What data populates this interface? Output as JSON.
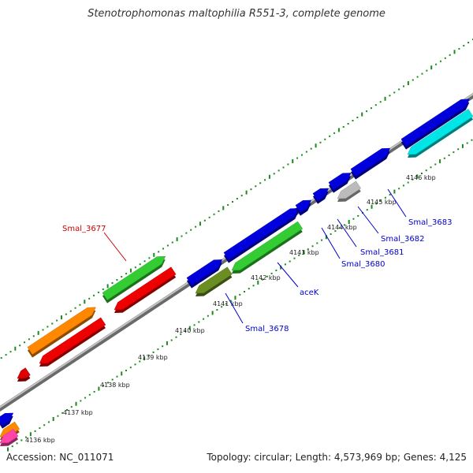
{
  "title": "Stenotrophomonas maltophilia R551-3, complete genome",
  "footer": {
    "accession": "Accession: NC_011071",
    "summary": "Topology: circular; Length: 4,573,969 bp; Genes: 4,125"
  },
  "colors": {
    "backbone": "#8c8c8c",
    "dots": "#1a8a1a",
    "label_blue": "#0000cc",
    "label_red": "#cc0000"
  },
  "scale": {
    "unit": "kbp",
    "ticks": [
      "4136 kbp",
      "4137 kbp",
      "4138 kbp",
      "4139 kbp",
      "4140 kbp",
      "4141 kbp",
      "4142 kbp",
      "4143 kbp",
      "4144 kbp",
      "4145 kbp",
      "4146 kbp"
    ]
  },
  "gene_labels": [
    {
      "text": "Smal_3677",
      "color": "label_red"
    },
    {
      "text": "Smal_3678",
      "color": "label_blue"
    },
    {
      "text": "aceK",
      "color": "label_blue"
    },
    {
      "text": "Smal_3680",
      "color": "label_blue"
    },
    {
      "text": "Smal_3681",
      "color": "label_blue"
    },
    {
      "text": "Smal_3682",
      "color": "label_blue"
    },
    {
      "text": "Smal_3683",
      "color": "label_blue"
    }
  ],
  "features": [
    {
      "color": "#0000dd",
      "lane": "outer_forward"
    },
    {
      "color": "#ff8800",
      "lane": "outer_forward"
    },
    {
      "color": "#33cc33",
      "lane": "outer_forward"
    },
    {
      "color": "#0000dd",
      "lane": "outer_forward"
    },
    {
      "color": "#0000dd",
      "lane": "outer_forward"
    },
    {
      "color": "#0000dd",
      "lane": "outer_forward"
    },
    {
      "color": "#0000dd",
      "lane": "outer_forward"
    },
    {
      "color": "#0000dd",
      "lane": "outer_forward"
    },
    {
      "color": "#0000dd",
      "lane": "outer_forward"
    },
    {
      "color": "#0000dd",
      "lane": "outer_forward"
    },
    {
      "color": "#ff8800",
      "lane": "inner_reverse"
    },
    {
      "color": "#dd0000",
      "lane": "inner_reverse"
    },
    {
      "color": "#ee0000",
      "lane": "inner_reverse"
    },
    {
      "color": "#ee0000",
      "lane": "inner_reverse"
    },
    {
      "color": "#6b8e23",
      "lane": "inner_reverse"
    },
    {
      "color": "#33cc33",
      "lane": "inner_reverse"
    },
    {
      "color": "#bbbbbb",
      "lane": "inner_reverse"
    },
    {
      "color": "#00e5e5",
      "lane": "inner_reverse"
    },
    {
      "color": "#ff44aa",
      "lane": "inner_reverse"
    }
  ]
}
